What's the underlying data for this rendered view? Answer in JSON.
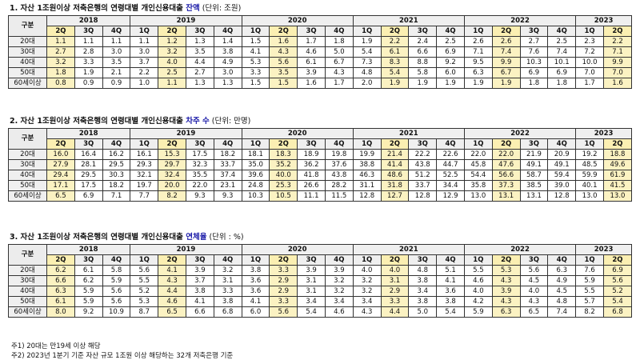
{
  "col_header_label": "구분",
  "years": [
    {
      "label": "2018",
      "span": 3
    },
    {
      "label": "2019",
      "span": 4
    },
    {
      "label": "2020",
      "span": 4
    },
    {
      "label": "2021",
      "span": 4
    },
    {
      "label": "2022",
      "span": 4
    },
    {
      "label": "2023",
      "span": 2
    }
  ],
  "quarters": [
    "2Q",
    "3Q",
    "4Q",
    "1Q",
    "2Q",
    "3Q",
    "4Q",
    "1Q",
    "2Q",
    "3Q",
    "4Q",
    "1Q",
    "2Q",
    "3Q",
    "4Q",
    "1Q",
    "2Q",
    "3Q",
    "4Q",
    "1Q",
    "2Q"
  ],
  "highlight_cols": [
    0,
    4,
    8,
    12,
    16,
    20
  ],
  "highlight_color": "#fbf2c2",
  "title_highlight_color": "#1a1aa8",
  "sections": [
    {
      "title_prefix": "1. 자산 1조원이상 저축은행의 연령대별 개인신용대출 ",
      "title_highlight": "잔액",
      "title_suffix": " (단위: 조원)",
      "rows": [
        {
          "label": "20대",
          "values": [
            "1.1",
            "1.1",
            "1.1",
            "1.1",
            "1.2",
            "1.3",
            "1.4",
            "1.5",
            "1.6",
            "1.7",
            "1.8",
            "1.9",
            "2.2",
            "2.4",
            "2.5",
            "2.6",
            "2.6",
            "2.7",
            "2.5",
            "2.3",
            "2.2"
          ]
        },
        {
          "label": "30대",
          "values": [
            "2.7",
            "2.8",
            "3.0",
            "3.0",
            "3.2",
            "3.5",
            "3.8",
            "4.1",
            "4.3",
            "4.6",
            "5.0",
            "5.4",
            "6.1",
            "6.6",
            "6.9",
            "7.1",
            "7.4",
            "7.6",
            "7.4",
            "7.2",
            "7.1"
          ]
        },
        {
          "label": "40대",
          "values": [
            "3.2",
            "3.3",
            "3.5",
            "3.7",
            "4.0",
            "4.4",
            "4.9",
            "5.3",
            "5.6",
            "6.1",
            "6.7",
            "7.3",
            "8.3",
            "8.8",
            "9.2",
            "9.5",
            "9.9",
            "10.3",
            "10.1",
            "10.0",
            "9.9"
          ]
        },
        {
          "label": "50대",
          "values": [
            "1.8",
            "1.9",
            "2.1",
            "2.2",
            "2.5",
            "2.7",
            "3.0",
            "3.3",
            "3.5",
            "3.9",
            "4.3",
            "4.8",
            "5.4",
            "5.8",
            "6.0",
            "6.3",
            "6.7",
            "6.9",
            "6.9",
            "7.0",
            "7.0"
          ]
        },
        {
          "label": "60세이상",
          "values": [
            "0.8",
            "0.9",
            "0.9",
            "1.0",
            "1.1",
            "1.3",
            "1.3",
            "1.5",
            "1.5",
            "1.6",
            "1.7",
            "2.0",
            "1.9",
            "1.9",
            "1.9",
            "1.9",
            "1.9",
            "1.8",
            "1.8",
            "1.7",
            "1.6"
          ]
        }
      ]
    },
    {
      "title_prefix": "2. 자산 1조원이상 저축은행의 연령대별 개인신용대출 ",
      "title_highlight": "차주 수",
      "title_suffix": " (단위: 만명)",
      "rows": [
        {
          "label": "20대",
          "values": [
            "16.0",
            "16.4",
            "16.2",
            "16.1",
            "15.3",
            "17.5",
            "18.2",
            "18.1",
            "18.3",
            "18.9",
            "19.8",
            "19.9",
            "21.4",
            "22.2",
            "22.6",
            "22.0",
            "22.0",
            "21.9",
            "20.9",
            "19.2",
            "18.8"
          ]
        },
        {
          "label": "30대",
          "values": [
            "27.9",
            "28.1",
            "29.5",
            "29.3",
            "29.7",
            "32.3",
            "33.7",
            "35.0",
            "35.2",
            "36.2",
            "37.6",
            "38.8",
            "41.4",
            "43.8",
            "44.7",
            "45.8",
            "47.6",
            "49.1",
            "49.1",
            "48.5",
            "49.6"
          ]
        },
        {
          "label": "40대",
          "values": [
            "29.4",
            "29.5",
            "30.3",
            "32.1",
            "32.4",
            "35.5",
            "37.4",
            "39.6",
            "40.0",
            "41.8",
            "43.8",
            "46.3",
            "48.6",
            "51.2",
            "52.5",
            "54.4",
            "56.6",
            "58.7",
            "59.4",
            "59.9",
            "61.9"
          ]
        },
        {
          "label": "50대",
          "values": [
            "17.1",
            "17.5",
            "18.2",
            "19.7",
            "20.0",
            "22.0",
            "23.1",
            "24.8",
            "25.3",
            "26.6",
            "28.2",
            "31.1",
            "31.8",
            "33.7",
            "34.4",
            "35.8",
            "37.3",
            "38.5",
            "39.0",
            "40.1",
            "41.5"
          ]
        },
        {
          "label": "60세이상",
          "values": [
            "6.5",
            "6.9",
            "7.1",
            "7.7",
            "8.2",
            "9.3",
            "9.3",
            "10.3",
            "10.5",
            "11.1",
            "11.5",
            "12.8",
            "12.7",
            "12.8",
            "12.9",
            "13.0",
            "13.1",
            "13.1",
            "12.8",
            "13.0",
            "13.0"
          ]
        }
      ]
    },
    {
      "title_prefix": "3. 자산 1조원이상 저축은행의 연령대별 개인신용대출 ",
      "title_highlight": "연체율",
      "title_suffix": " (단위 : %)",
      "rows": [
        {
          "label": "20대",
          "values": [
            "6.2",
            "6.1",
            "5.8",
            "5.6",
            "4.1",
            "3.9",
            "3.2",
            "3.8",
            "3.3",
            "3.9",
            "3.9",
            "4.0",
            "4.0",
            "4.8",
            "5.1",
            "5.5",
            "5.3",
            "5.6",
            "6.3",
            "7.6",
            "6.9"
          ]
        },
        {
          "label": "30대",
          "values": [
            "6.6",
            "6.2",
            "5.9",
            "5.5",
            "4.3",
            "3.7",
            "3.1",
            "3.6",
            "2.9",
            "3.1",
            "3.2",
            "3.2",
            "3.1",
            "3.8",
            "4.1",
            "4.6",
            "4.3",
            "4.5",
            "4.9",
            "5.9",
            "5.6"
          ]
        },
        {
          "label": "40대",
          "values": [
            "6.3",
            "5.9",
            "5.6",
            "5.2",
            "4.4",
            "3.8",
            "3.3",
            "3.6",
            "2.9",
            "3.1",
            "3.2",
            "3.2",
            "2.9",
            "3.4",
            "3.6",
            "4.0",
            "3.9",
            "4.0",
            "4.5",
            "5.5",
            "5.2"
          ]
        },
        {
          "label": "50대",
          "values": [
            "6.1",
            "5.9",
            "5.6",
            "5.3",
            "4.6",
            "4.1",
            "3.8",
            "4.1",
            "3.3",
            "3.4",
            "3.4",
            "3.4",
            "3.3",
            "3.8",
            "3.8",
            "4.2",
            "4.3",
            "4.3",
            "4.8",
            "5.7",
            "5.4"
          ]
        },
        {
          "label": "60세이상",
          "values": [
            "8.0",
            "9.2",
            "10.9",
            "8.7",
            "6.5",
            "6.6",
            "6.8",
            "6.0",
            "5.6",
            "5.4",
            "4.6",
            "4.3",
            "4.4",
            "5.0",
            "5.4",
            "5.9",
            "6.3",
            "6.5",
            "7.4",
            "8.2",
            "6.8"
          ]
        }
      ]
    }
  ],
  "notes": [
    "주1) 20대는 만19세 이상 해당",
    "주2) 2023년 1분기 기준 자산 규모 1조원 이상 해당하는 32개 저축은행 기준"
  ]
}
